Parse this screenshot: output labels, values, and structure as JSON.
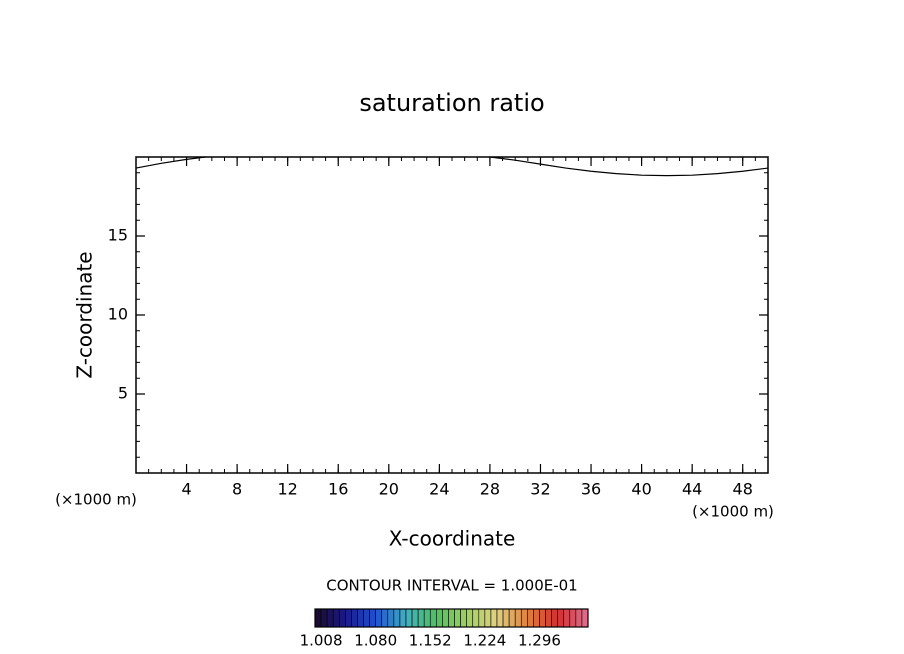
{
  "chart_data": {
    "type": "contour",
    "title": "saturation ratio",
    "xlabel": "X-coordinate",
    "ylabel": "Z-coordinate",
    "x_unit_left": "(×1000 m)",
    "x_unit_right": "(×1000 m)",
    "xlim": [
      0,
      50
    ],
    "ylim": [
      0,
      20
    ],
    "xticks": [
      4,
      8,
      12,
      16,
      20,
      24,
      28,
      32,
      36,
      40,
      44,
      48
    ],
    "yticks": [
      5,
      10,
      15
    ],
    "minor_tick_step": {
      "x": 1,
      "y": 1
    },
    "contour_lines": [
      {
        "x": [
          0,
          2,
          4,
          5.5
        ],
        "y": [
          19.3,
          19.6,
          19.85,
          20
        ]
      },
      {
        "x": [
          28,
          30,
          32,
          34,
          36,
          38,
          40,
          42,
          44,
          46,
          48,
          50
        ],
        "y": [
          20,
          19.8,
          19.55,
          19.3,
          19.1,
          18.95,
          18.85,
          18.82,
          18.85,
          18.95,
          19.1,
          19.3
        ]
      }
    ],
    "line_color": "#000000",
    "contour_interval": "CONTOUR INTERVAL = 1.000E-01",
    "colorbar": {
      "range": [
        1.0,
        1.36
      ],
      "ticks": [
        1.008,
        {
          "value": 1.08,
          "label": "1.080"
        },
        1.152,
        1.224,
        1.296
      ],
      "colors": [
        "#1a0a2a",
        "#1a1a8a",
        "#2050d0",
        "#40b0c0",
        "#50c060",
        "#a0d060",
        "#e0d080",
        "#e08040",
        "#d03030",
        "#e07090"
      ]
    }
  }
}
